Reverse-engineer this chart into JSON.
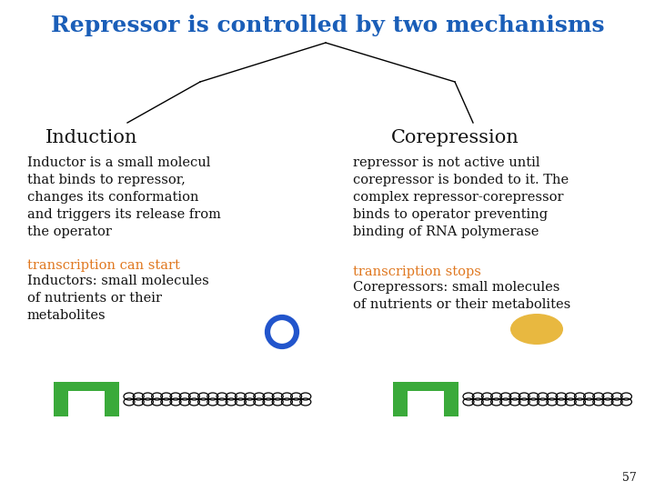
{
  "title": "Repressor is controlled by two mechanisms",
  "title_color": "#1a5eb8",
  "title_fontsize": 18,
  "left_heading": "Induction",
  "right_heading": "Corepression",
  "heading_fontsize": 15,
  "left_text_black": "Inductor is a small molecul\nthat binds to repressor,\nchanges its conformation\nand triggers its release from\nthe operator",
  "left_text_orange": "transcription can start",
  "left_text_black2": "Inductors: small molecules\nof nutrients or their\nmetabolites",
  "right_text_black": "repressor is not active until\ncorepressor is bonded to it. The\ncomplex repressor-corepressor\nbinds to operator preventing\nbinding of RNA polymerase",
  "right_text_orange": "transcription stops",
  "right_text_black2": "Corepressors: small molecules\nof nutrients or their metabolites",
  "body_fontsize": 10.5,
  "orange_color": "#e07820",
  "black_color": "#111111",
  "green_color": "#3aaa3a",
  "blue_ring_color": "#2255cc",
  "gold_ellipse_color": "#e8b840",
  "background_color": "#ffffff",
  "page_number": "57"
}
